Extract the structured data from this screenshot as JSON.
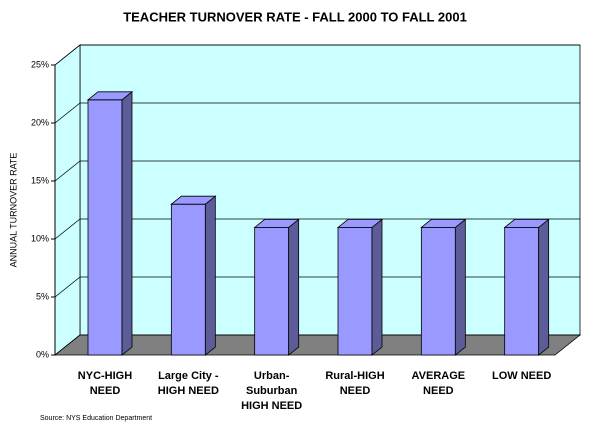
{
  "chart_data": {
    "type": "bar3d",
    "title": "TEACHER TURNOVER RATE - FALL 2000 TO FALL 2001",
    "y_label": "ANNUAL TURNOVER RATE",
    "source": "Source: NYS Education Department",
    "categories": [
      "NYC-HIGH\nNEED",
      "Large City -\nHIGH NEED",
      "Urban-\nSuburban\nHIGH NEED",
      "Rural-HIGH\nNEED",
      "AVERAGE\nNEED",
      "LOW NEED"
    ],
    "values": [
      22,
      13,
      11,
      11,
      11,
      11
    ],
    "color": "#9999ff",
    "ylim": [
      0,
      25
    ],
    "yticks": [
      {
        "value": 0,
        "label": "0%"
      },
      {
        "value": 5,
        "label": "5%"
      },
      {
        "value": 10,
        "label": "10%"
      },
      {
        "value": 15,
        "label": "15%"
      },
      {
        "value": 20,
        "label": "20%"
      },
      {
        "value": 25,
        "label": "25%"
      }
    ],
    "grid": true
  }
}
